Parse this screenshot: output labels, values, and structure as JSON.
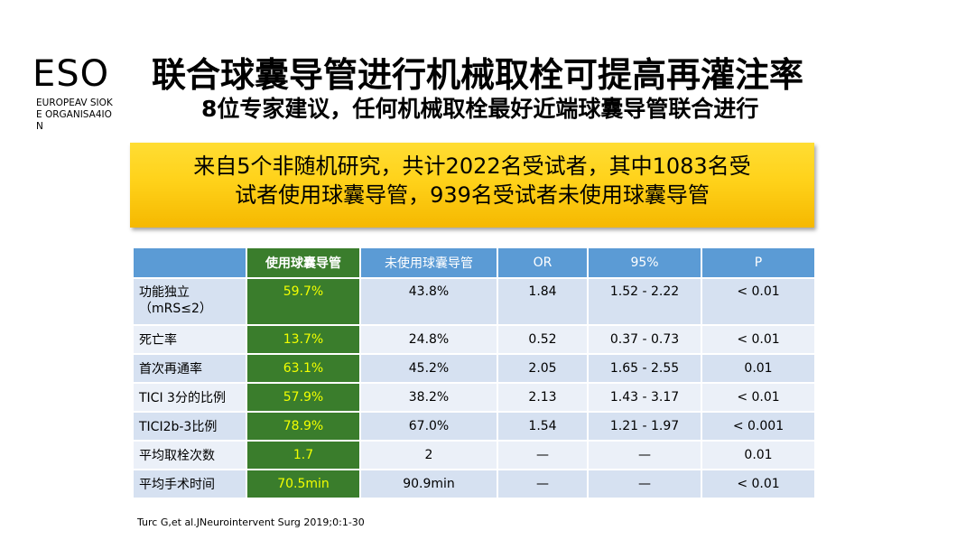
{
  "logo": {
    "main": "ESO",
    "sub": "EUROPEAV SIOKE ORGANISA4ION"
  },
  "title": "联合球囊导管进行机械取栓可提高再灌注率",
  "subtitle": "8位专家建议，任何机械取栓最好近端球囊导管联合进行",
  "banner": {
    "line1": "来自5个非随机研究，共计2022名受试者，其中1083名受",
    "line2": "试者使用球囊导管，939名受试者未使用球囊导管"
  },
  "table": {
    "headers": [
      "",
      "使用球囊导管",
      "未使用球囊导管",
      "OR",
      "95%",
      "P"
    ],
    "rows": [
      {
        "label": "功能独立",
        "label2": "（mRS≤2）",
        "with": "59.7%",
        "without": "43.8%",
        "or": "1.84",
        "ci": "1.52 - 2.22",
        "p": "< 0.01"
      },
      {
        "label": "死亡率",
        "label2": "",
        "with": "13.7%",
        "without": "24.8%",
        "or": "0.52",
        "ci": "0.37 - 0.73",
        "p": "< 0.01"
      },
      {
        "label": "首次再通率",
        "label2": "",
        "with": "63.1%",
        "without": "45.2%",
        "or": "2.05",
        "ci": "1.65 - 2.55",
        "p": "0.01"
      },
      {
        "label": "TICI 3分的比例",
        "label2": "",
        "with": "57.9%",
        "without": "38.2%",
        "or": "2.13",
        "ci": "1.43 - 3.17",
        "p": "< 0.01"
      },
      {
        "label": "TICI2b-3比例",
        "label2": "",
        "with": "78.9%",
        "without": "67.0%",
        "or": "1.54",
        "ci": "1.21 - 1.97",
        "p": "< 0.001"
      },
      {
        "label": "平均取栓次数",
        "label2": "",
        "with": "1.7",
        "without": "2",
        "or": "—",
        "ci": "—",
        "p": "0.01"
      },
      {
        "label": "平均手术时间",
        "label2": "",
        "with": "70.5min",
        "without": "90.9min",
        "or": "—",
        "ci": "—",
        "p": "< 0.01"
      }
    ]
  },
  "citation": "Turc G,et al.JNeurointervent Surg 2019;0:1-30"
}
